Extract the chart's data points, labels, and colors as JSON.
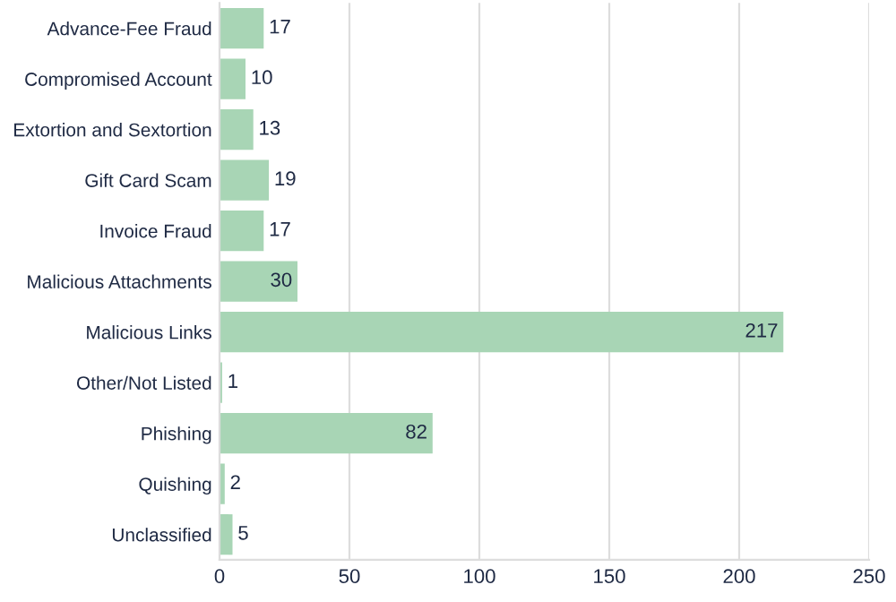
{
  "chart_data": {
    "type": "bar",
    "orientation": "horizontal",
    "categories": [
      "Advance-Fee Fraud",
      "Compromised Account",
      "Extortion and Sextortion",
      "Gift Card Scam",
      "Invoice Fraud",
      "Malicious Attachments",
      "Malicious Links",
      "Other/Not Listed",
      "Phishing",
      "Quishing",
      "Unclassified"
    ],
    "values": [
      17,
      10,
      13,
      19,
      17,
      30,
      217,
      1,
      82,
      2,
      5
    ],
    "color": "#a8d5b5",
    "xlim": [
      0,
      250
    ],
    "xticks": [
      0,
      50,
      100,
      150,
      200,
      250
    ],
    "grid": "x",
    "data_labels": true
  }
}
